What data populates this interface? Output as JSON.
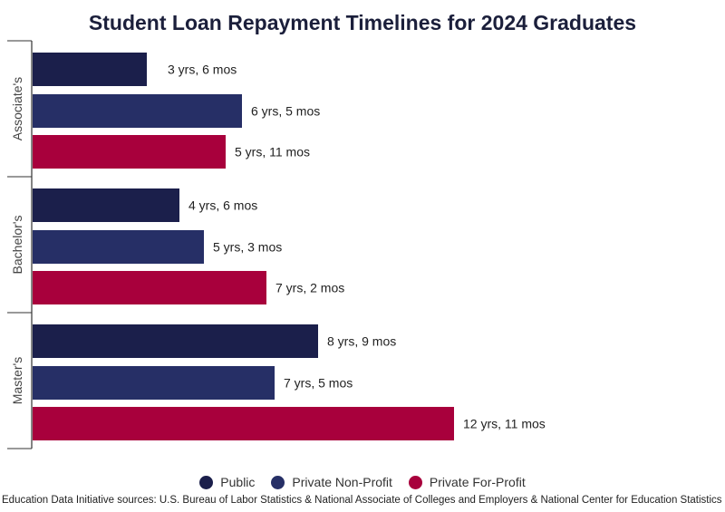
{
  "chart_data": {
    "type": "bar",
    "orientation": "horizontal",
    "title": "Student Loan Repayment Timelines for 2024 Graduates",
    "xlabel": "",
    "ylabel": "",
    "unit": "months",
    "xlim": [
      0,
      168
    ],
    "grid": false,
    "legend_placement": "bottom",
    "categories": [
      "Associate's",
      "Bachelor's",
      "Master's"
    ],
    "series": [
      {
        "name": "Public",
        "color": "#1b1f4b",
        "values": [
          42,
          54,
          105
        ],
        "labels": [
          "3 yrs, 6 mos",
          "4 yrs, 6 mos",
          "8 yrs, 9 mos"
        ]
      },
      {
        "name": "Private Non-Profit",
        "color": "#262f66",
        "values": [
          77,
          63,
          89
        ],
        "labels": [
          "6 yrs, 5 mos",
          "5 yrs, 3 mos",
          "7 yrs, 5 mos"
        ]
      },
      {
        "name": "Private For-Profit",
        "color": "#a8003c",
        "values": [
          71,
          86,
          155
        ],
        "labels": [
          "5 yrs, 11 mos",
          "7 yrs, 2 mos",
          "12 yrs, 11 mos"
        ]
      }
    ]
  },
  "footer": {
    "source": "Education Data Initiative sources: U.S. Bureau of Labor Statistics & National Associate of Colleges and Employers & National Center for Education Statistics"
  }
}
